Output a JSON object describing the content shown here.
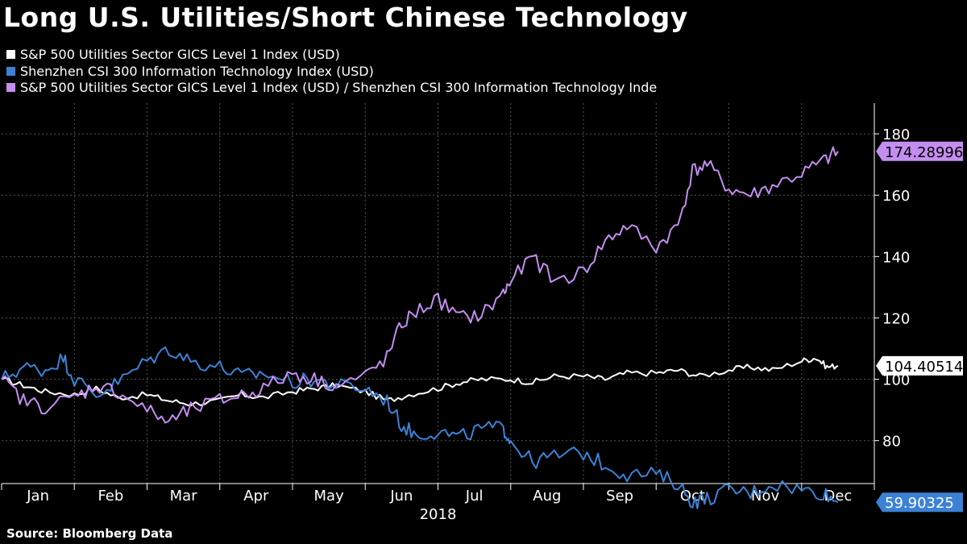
{
  "title": "Long U.S. Utilities/Short Chinese Technology",
  "source": "Source: Bloomberg Data",
  "colors": {
    "background": "#000000",
    "grid": "#555555",
    "utilities": "#ffffff",
    "tech": "#3b82d6",
    "ratio": "#c48ef0"
  },
  "chart_data": {
    "type": "line",
    "title": "Long U.S. Utilities/Short Chinese Technology",
    "xlabel": "2018",
    "ylabel": "",
    "x_tick_labels": [
      "Jan",
      "Feb",
      "Mar",
      "Apr",
      "May",
      "Jun",
      "Jul",
      "Aug",
      "Sep",
      "Oct",
      "Nov",
      "Dec"
    ],
    "x_axis_year": "2018",
    "ylim": [
      66,
      190
    ],
    "y_ticks": [
      80,
      100,
      120,
      140,
      160,
      180
    ],
    "grid": true,
    "legend_position": "top-left",
    "series": [
      {
        "name": "S&P 500 Utilities Sector GICS Level 1 Index (USD)",
        "key": "utilities",
        "last_value_label": "104.40514",
        "points": [
          [
            0,
            100
          ],
          [
            0.3,
            98
          ],
          [
            0.6,
            96
          ],
          [
            1,
            95
          ],
          [
            1.3,
            97
          ],
          [
            1.6,
            94
          ],
          [
            2,
            95
          ],
          [
            2.3,
            93
          ],
          [
            2.6,
            92
          ],
          [
            3,
            93
          ],
          [
            3.3,
            95
          ],
          [
            3.6,
            94
          ],
          [
            4,
            96
          ],
          [
            4.3,
            97
          ],
          [
            4.6,
            98
          ],
          [
            5,
            96
          ],
          [
            5.3,
            93
          ],
          [
            5.6,
            95
          ],
          [
            6,
            97
          ],
          [
            6.3,
            99
          ],
          [
            6.6,
            100
          ],
          [
            7,
            100
          ],
          [
            7.3,
            99
          ],
          [
            7.6,
            101
          ],
          [
            8,
            101
          ],
          [
            8.3,
            100
          ],
          [
            8.6,
            102
          ],
          [
            9,
            102
          ],
          [
            9.3,
            103
          ],
          [
            9.6,
            101
          ],
          [
            10,
            103
          ],
          [
            10.3,
            104
          ],
          [
            10.6,
            103
          ],
          [
            11,
            106
          ],
          [
            11.2,
            107
          ],
          [
            11.35,
            104
          ],
          [
            11.5,
            104.4
          ]
        ]
      },
      {
        "name": "Shenzhen CSI 300 Information Technology Index (USD)",
        "key": "tech",
        "last_value_label": "59.90325",
        "points": [
          [
            0,
            100
          ],
          [
            0.3,
            104
          ],
          [
            0.6,
            103
          ],
          [
            0.85,
            107
          ],
          [
            1,
            100
          ],
          [
            1.3,
            95
          ],
          [
            1.6,
            99
          ],
          [
            2,
            106
          ],
          [
            2.3,
            110
          ],
          [
            2.6,
            106
          ],
          [
            3,
            104
          ],
          [
            3.3,
            101
          ],
          [
            3.6,
            102
          ],
          [
            4,
            99
          ],
          [
            4.3,
            100
          ],
          [
            4.6,
            98
          ],
          [
            5,
            97
          ],
          [
            5.3,
            93
          ],
          [
            5.5,
            85
          ],
          [
            5.7,
            82
          ],
          [
            6,
            83
          ],
          [
            6.3,
            81
          ],
          [
            6.6,
            84
          ],
          [
            6.9,
            84
          ],
          [
            7,
            80
          ],
          [
            7.3,
            73
          ],
          [
            7.6,
            75
          ],
          [
            8,
            76
          ],
          [
            8.3,
            72
          ],
          [
            8.6,
            69
          ],
          [
            9,
            69
          ],
          [
            9.3,
            66
          ],
          [
            9.5,
            60
          ],
          [
            9.7,
            61
          ],
          [
            10,
            64
          ],
          [
            10.3,
            63
          ],
          [
            10.6,
            66
          ],
          [
            11,
            64
          ],
          [
            11.3,
            63
          ],
          [
            11.5,
            59.9
          ]
        ]
      },
      {
        "name": "S&P 500 Utilities Sector GICS Level 1 Index (USD) / Shenzhen CSI 300 Information Technology Inde",
        "key": "ratio",
        "last_value_label": "174.28996",
        "points": [
          [
            0,
            100
          ],
          [
            0.3,
            93
          ],
          [
            0.6,
            91
          ],
          [
            1,
            94
          ],
          [
            1.3,
            98
          ],
          [
            1.6,
            96
          ],
          [
            2,
            90
          ],
          [
            2.3,
            86
          ],
          [
            2.6,
            90
          ],
          [
            3,
            93
          ],
          [
            3.3,
            95
          ],
          [
            3.6,
            97
          ],
          [
            4,
            102
          ],
          [
            4.3,
            100
          ],
          [
            4.6,
            98
          ],
          [
            5,
            101
          ],
          [
            5.3,
            107
          ],
          [
            5.5,
            118
          ],
          [
            5.7,
            122
          ],
          [
            6,
            126
          ],
          [
            6.3,
            120
          ],
          [
            6.6,
            121
          ],
          [
            6.9,
            128
          ],
          [
            7,
            132
          ],
          [
            7.3,
            140
          ],
          [
            7.6,
            132
          ],
          [
            8,
            135
          ],
          [
            8.3,
            145
          ],
          [
            8.6,
            150
          ],
          [
            9,
            143
          ],
          [
            9.3,
            150
          ],
          [
            9.5,
            168
          ],
          [
            9.7,
            170
          ],
          [
            10,
            162
          ],
          [
            10.3,
            160
          ],
          [
            10.6,
            163
          ],
          [
            11,
            167
          ],
          [
            11.3,
            171
          ],
          [
            11.5,
            174.3
          ]
        ]
      }
    ]
  }
}
